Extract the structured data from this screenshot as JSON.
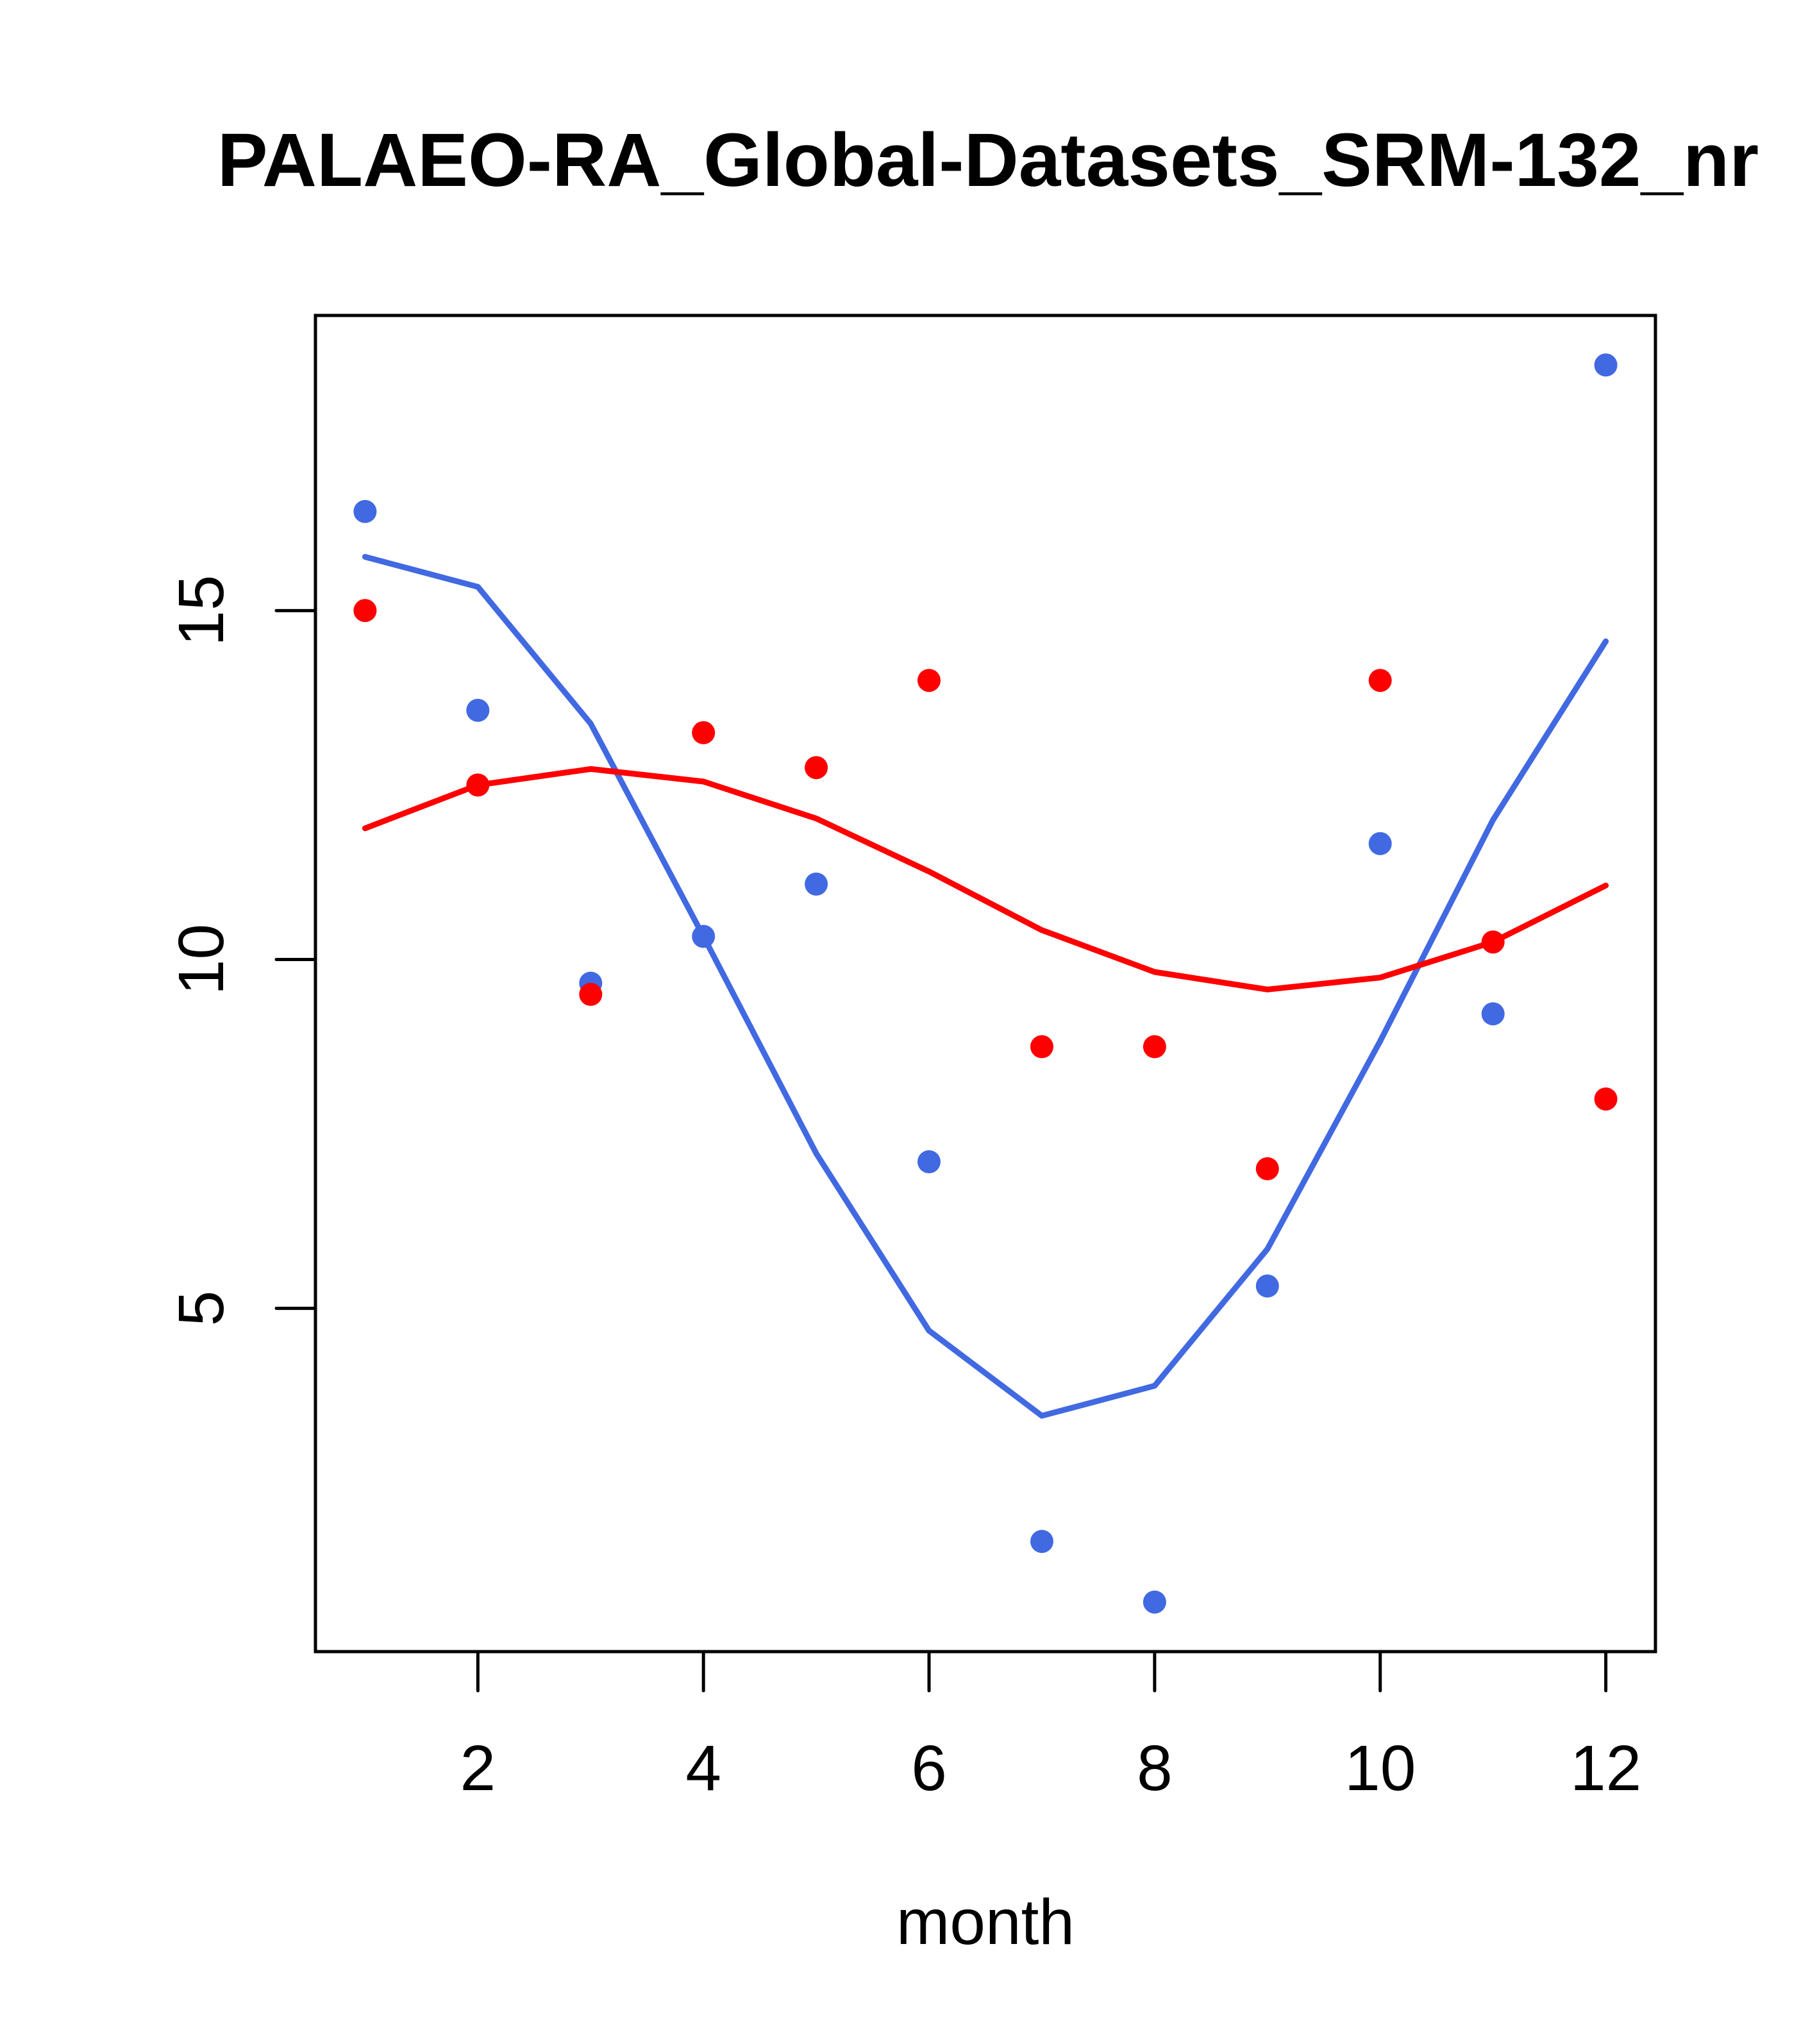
{
  "chart_data": {
    "type": "scatter",
    "title": "PALAEO-RA_Global-Datasets_SRM-132_nr",
    "xlabel": "month",
    "ylabel": "",
    "xlim": [
      0.56,
      12.44
    ],
    "ylim": [
      0.08,
      19.23
    ],
    "x_ticks": [
      2,
      4,
      6,
      8,
      10,
      12
    ],
    "x_tick_labels": [
      "2",
      "4",
      "6",
      "8",
      "10",
      "12"
    ],
    "y_ticks": [
      5,
      10,
      15
    ],
    "y_tick_labels": [
      "5",
      "10",
      "15"
    ],
    "grid": false,
    "legend": null,
    "x": [
      1,
      2,
      3,
      4,
      5,
      6,
      7,
      8,
      9,
      10,
      11,
      12
    ],
    "series": [
      {
        "name": "blue points",
        "kind": "points",
        "color": "#4169E1",
        "values": [
          16.42,
          13.57,
          9.66,
          10.33,
          11.08,
          7.1,
          1.66,
          0.79,
          5.32,
          11.66,
          9.22,
          18.52
        ]
      },
      {
        "name": "red points",
        "kind": "points",
        "color": "#FF0000",
        "values": [
          15.0,
          12.5,
          9.5,
          13.25,
          12.75,
          14.0,
          8.75,
          8.75,
          7.0,
          14.0,
          10.25,
          8.0
        ]
      },
      {
        "name": "blue line",
        "kind": "line",
        "color": "#4169E1",
        "values": [
          15.77,
          15.34,
          13.38,
          10.33,
          7.22,
          4.68,
          3.46,
          3.89,
          5.85,
          8.83,
          12.0,
          14.56
        ]
      },
      {
        "name": "red line",
        "kind": "line",
        "color": "#FF0000",
        "values": [
          11.88,
          12.5,
          12.73,
          12.55,
          12.02,
          11.26,
          10.42,
          9.82,
          9.57,
          9.74,
          10.25,
          11.06
        ]
      }
    ]
  }
}
